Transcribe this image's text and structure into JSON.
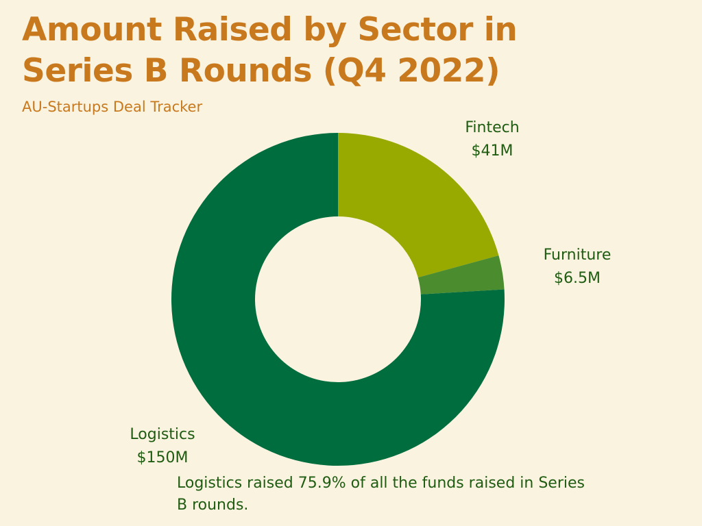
{
  "title": "Amount Raised by Sector in Series B Rounds (Q4 2022)",
  "subtitle": "AU-Startups Deal Tracker",
  "note": "Logistics raised 75.9% of all the funds raised in Series B rounds.",
  "chart_data": {
    "type": "pie",
    "style": "donut",
    "slices": [
      {
        "name": "Fintech",
        "value": 41,
        "label": "$41M",
        "color": "#98aa00"
      },
      {
        "name": "Furniture",
        "value": 6.5,
        "label": "$6.5M",
        "color": "#4a8c2e"
      },
      {
        "name": "Logistics",
        "value": 150,
        "label": "$150M",
        "color": "#006d3f"
      }
    ],
    "legend": "none",
    "background": "#faf3e0"
  }
}
